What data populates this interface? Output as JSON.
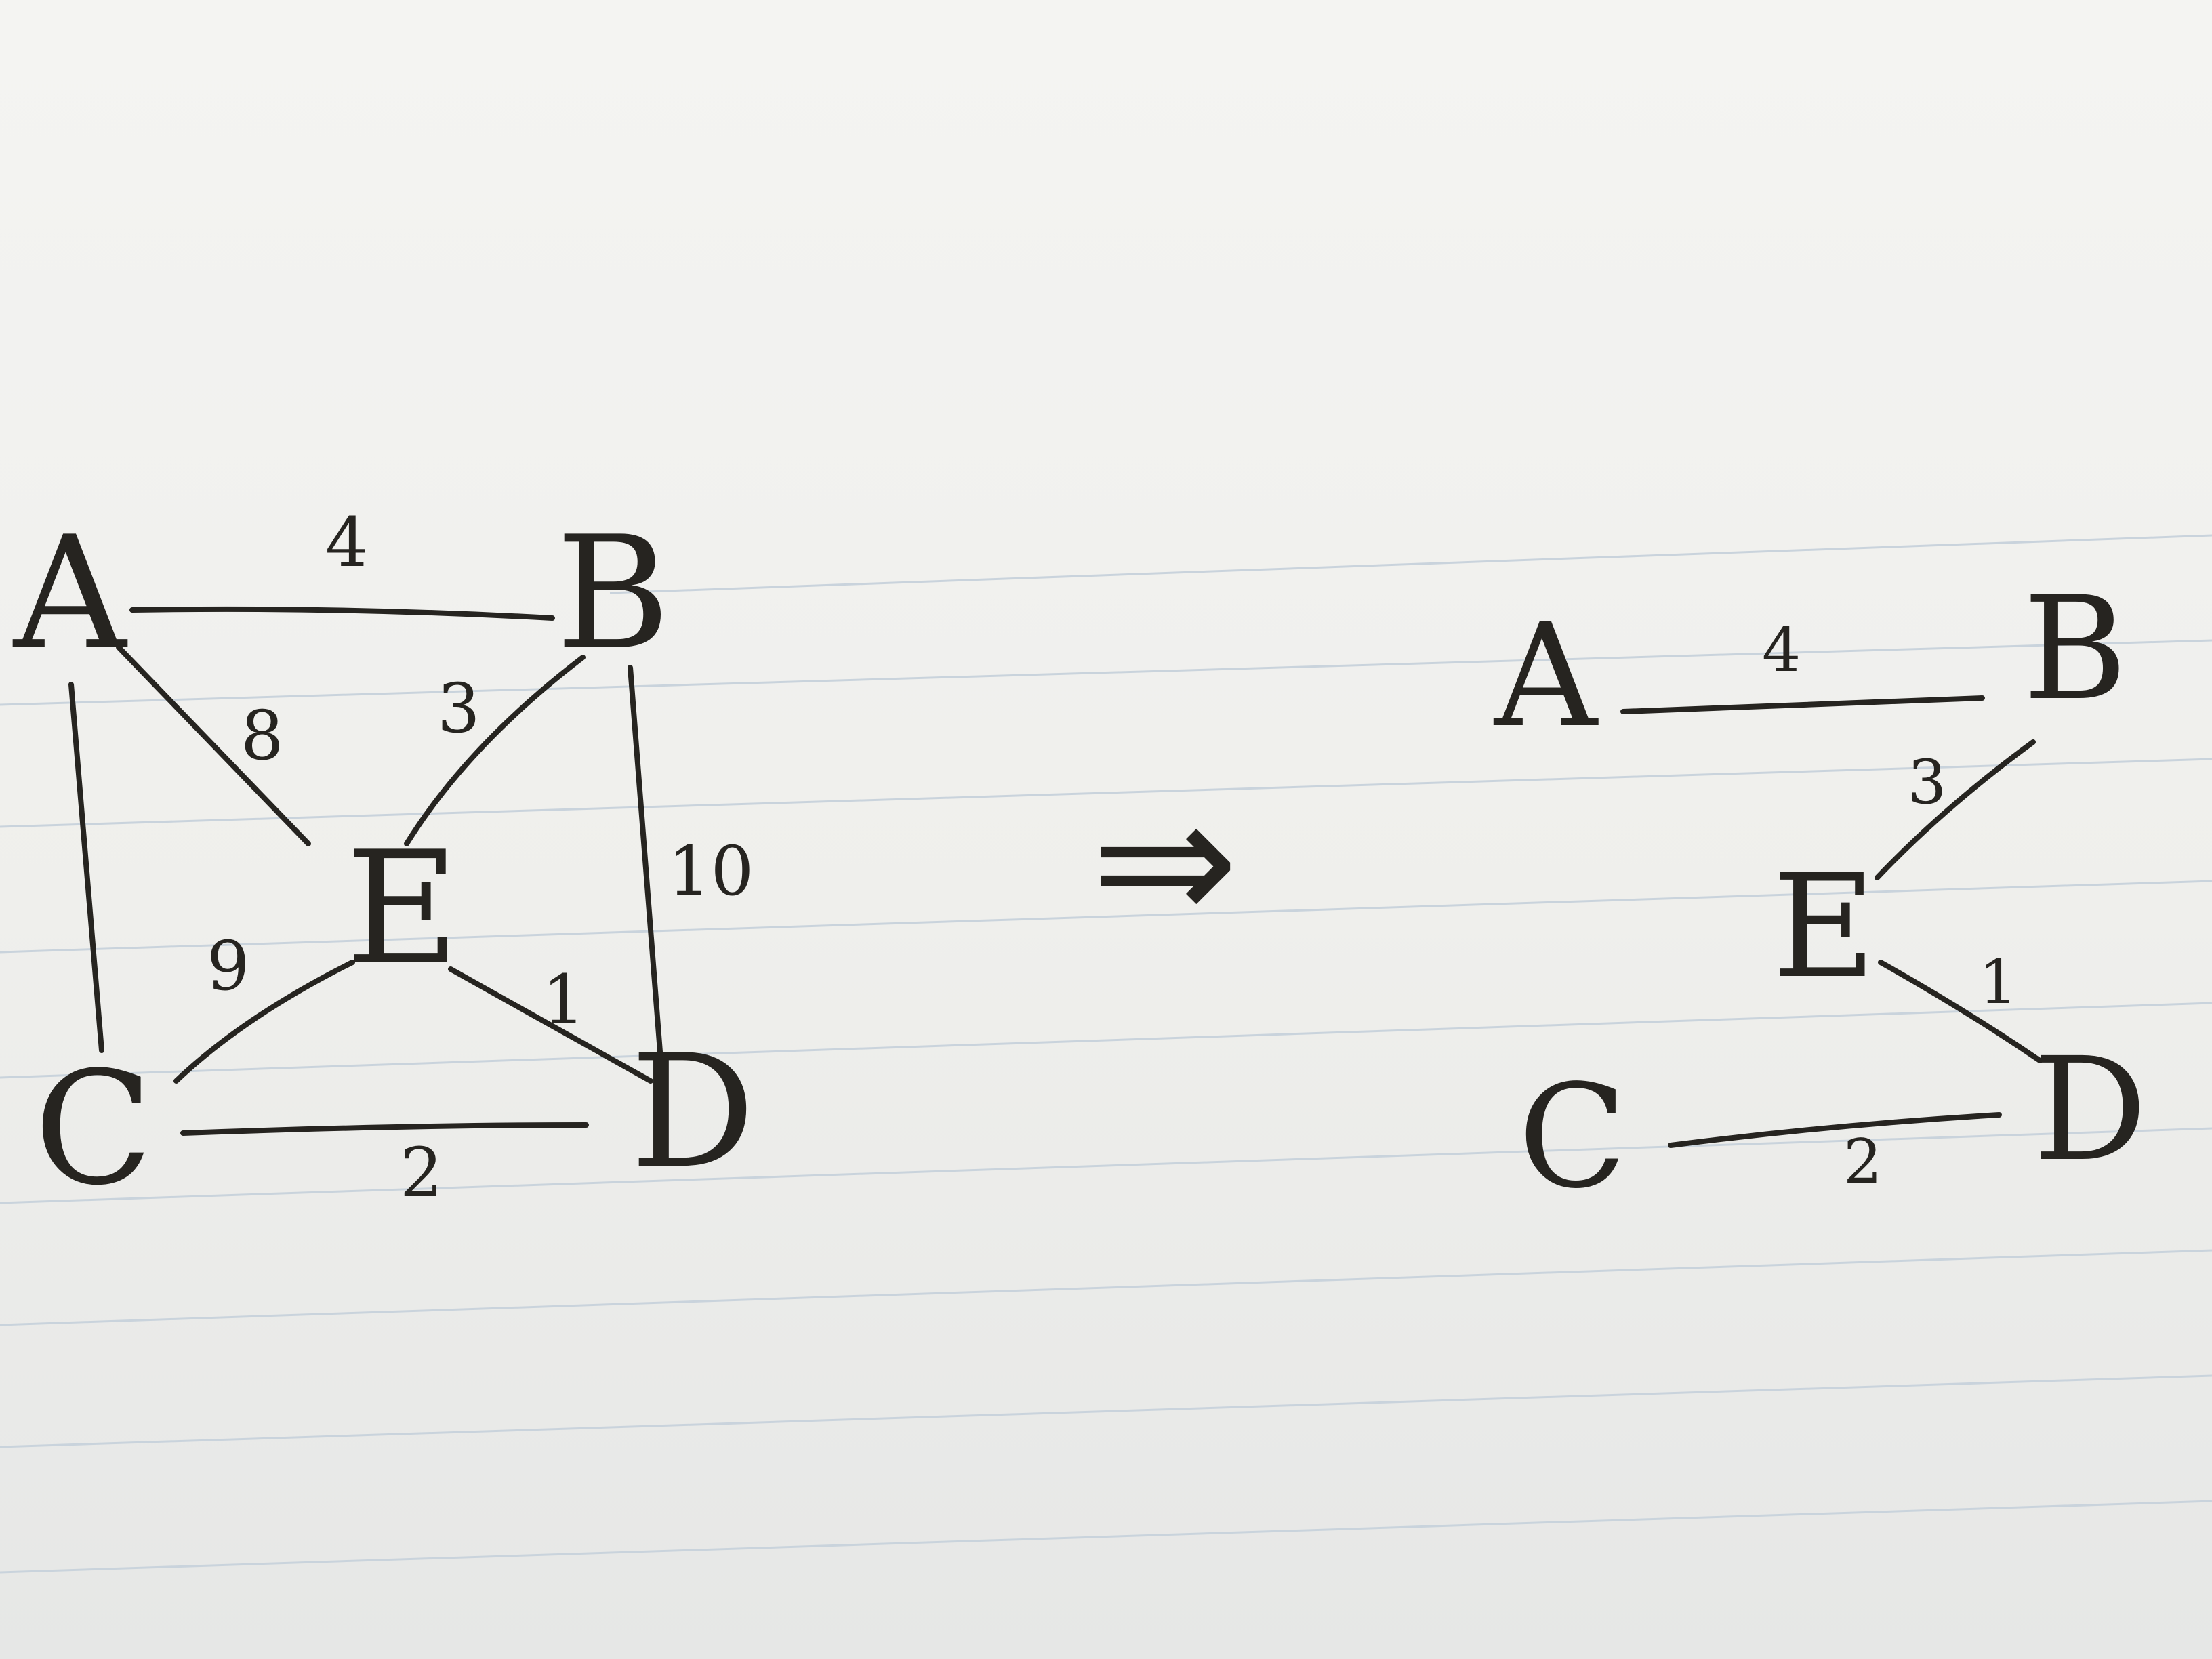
{
  "left_graph": {
    "nodes": [
      {
        "id": "A",
        "label": "A"
      },
      {
        "id": "B",
        "label": "B"
      },
      {
        "id": "C",
        "label": "C"
      },
      {
        "id": "D",
        "label": "D"
      },
      {
        "id": "E",
        "label": "E"
      }
    ],
    "edges": [
      {
        "from": "A",
        "to": "B",
        "weight": "4"
      },
      {
        "from": "A",
        "to": "E",
        "weight": "8"
      },
      {
        "from": "B",
        "to": "E",
        "weight": "3"
      },
      {
        "from": "B",
        "to": "D",
        "weight": "10"
      },
      {
        "from": "E",
        "to": "C",
        "weight": "9"
      },
      {
        "from": "E",
        "to": "D",
        "weight": "1"
      },
      {
        "from": "C",
        "to": "D",
        "weight": "2"
      },
      {
        "from": "A",
        "to": "C",
        "weight": ""
      }
    ]
  },
  "arrow_symbol": "⇒",
  "right_graph": {
    "nodes": [
      {
        "id": "A",
        "label": "A"
      },
      {
        "id": "B",
        "label": "B"
      },
      {
        "id": "C",
        "label": "C"
      },
      {
        "id": "D",
        "label": "D"
      },
      {
        "id": "E",
        "label": "E"
      }
    ],
    "edges": [
      {
        "from": "A",
        "to": "B",
        "weight": "4"
      },
      {
        "from": "B",
        "to": "E",
        "weight": "3"
      },
      {
        "from": "E",
        "to": "D",
        "weight": "1"
      },
      {
        "from": "C",
        "to": "D",
        "weight": "2"
      }
    ]
  }
}
